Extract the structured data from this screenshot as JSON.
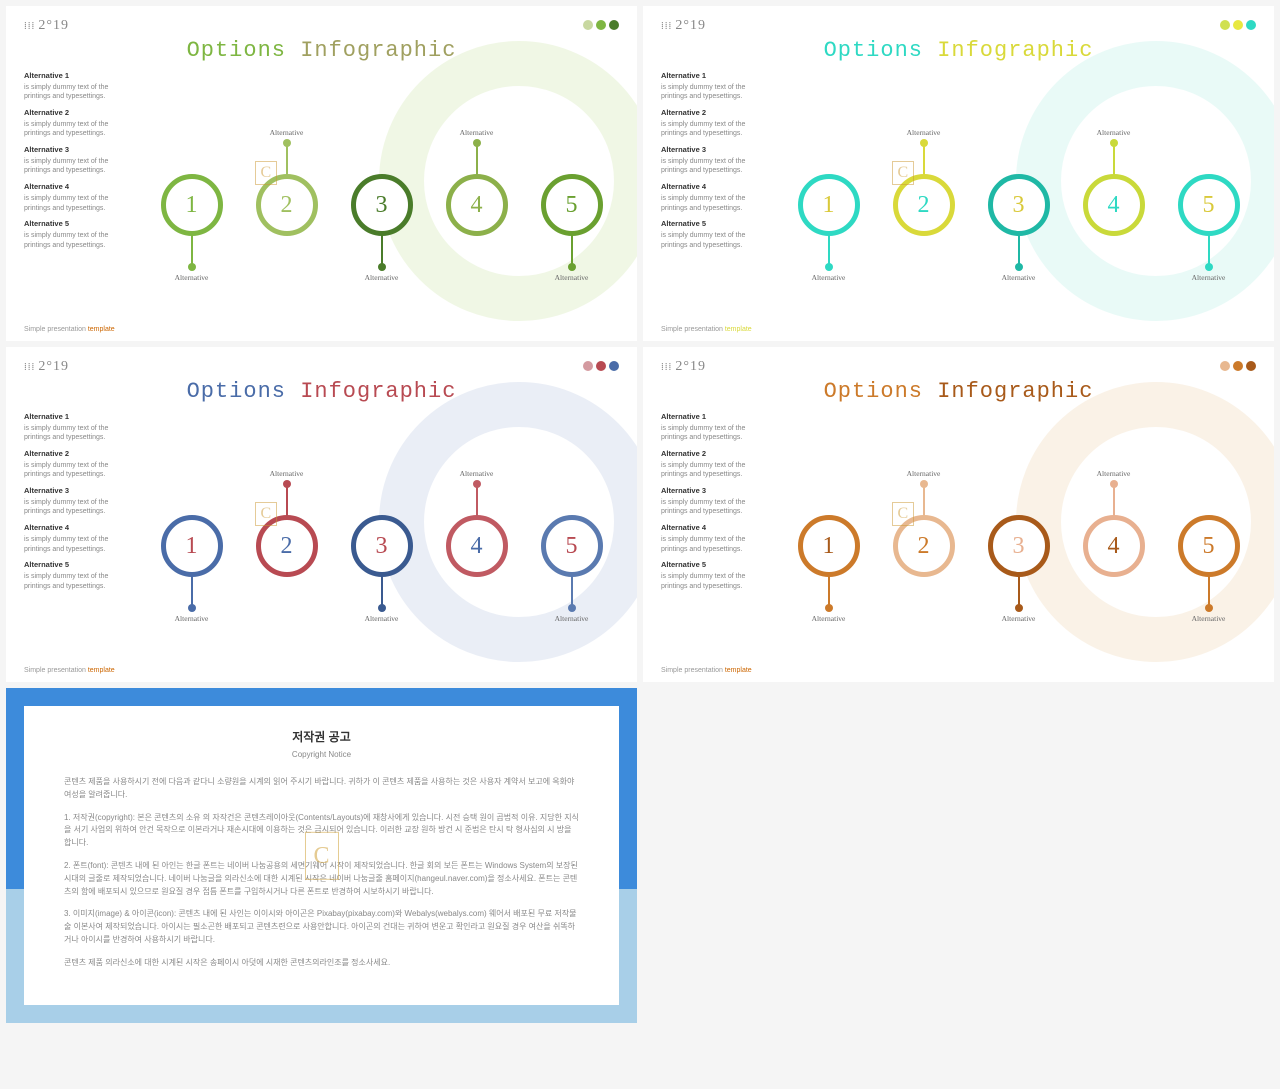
{
  "common": {
    "logo_text": "2°19",
    "title_a": "Options",
    "title_b": "Infographic",
    "alt_label": "Alternative",
    "alt_desc": "is simply dummy text of the printings and typesettings.",
    "footer_a": "Simple presentation",
    "footer_b": "template",
    "numbers": [
      "1",
      "2",
      "3",
      "4",
      "5"
    ],
    "stems": [
      "down",
      "up",
      "down",
      "up",
      "down"
    ]
  },
  "slides": [
    {
      "name": "green",
      "dots": [
        "#c8d8a0",
        "#7eb642",
        "#4a7c2a"
      ],
      "title_color_a": "#7eb642",
      "title_color_b": "#a0a060",
      "ring_color": "#cde4a8",
      "circle_colors": [
        "#7eb642",
        "#a0c060",
        "#4a7c2a",
        "#8cb04a",
        "#6aa030"
      ],
      "number_colors": [
        "#7eb642",
        "#a0c060",
        "#4a7c2a",
        "#8cb04a",
        "#6aa030"
      ],
      "footer_b_color": "#cc6600",
      "watermark_color": "#cc9933"
    },
    {
      "name": "cyan",
      "dots": [
        "#d0e050",
        "#e8e840",
        "#2ed9c3"
      ],
      "title_color_a": "#2ed9c3",
      "title_color_b": "#d9d93a",
      "ring_color": "#b6f0e6",
      "circle_colors": [
        "#2ed9c3",
        "#d9d93a",
        "#1fb8a5",
        "#c9d93a",
        "#2ed9c3"
      ],
      "number_colors": [
        "#d9c93a",
        "#2ed9c3",
        "#d9c93a",
        "#2ed9c3",
        "#d9c93a"
      ],
      "footer_b_color": "#d9d93a",
      "watermark_color": "#cc9933"
    },
    {
      "name": "blue",
      "dots": [
        "#d49aa0",
        "#b84a52",
        "#4a6ca8"
      ],
      "title_color_a": "#4a6ca8",
      "title_color_b": "#b84a52",
      "ring_color": "#b8c8e0",
      "circle_colors": [
        "#4a6ca8",
        "#b84a52",
        "#3a5a90",
        "#c05a62",
        "#5a7ab0"
      ],
      "number_colors": [
        "#b84a52",
        "#4a6ca8",
        "#b84a52",
        "#4a6ca8",
        "#b84a52"
      ],
      "footer_b_color": "#cc6600",
      "watermark_color": "#cc9933"
    },
    {
      "name": "brown",
      "dots": [
        "#e8b890",
        "#cc7a2a",
        "#a85a1a"
      ],
      "title_color_a": "#cc7a2a",
      "title_color_b": "#a85a1a",
      "ring_color": "#f0d4b0",
      "circle_colors": [
        "#cc7a2a",
        "#e8b890",
        "#a85a1a",
        "#e8b090",
        "#cc7a2a"
      ],
      "number_colors": [
        "#a85a1a",
        "#cc7a2a",
        "#e8b090",
        "#a85a1a",
        "#cc7a2a"
      ],
      "footer_b_color": "#cc6600",
      "watermark_color": "#cc9933"
    }
  ],
  "copyright": {
    "title": "저작권 공고",
    "subtitle": "Copyright Notice",
    "border_top": "#3d8bdb",
    "border_bottom": "#a8cfe8",
    "p1": "콘텐츠 제품을 사용하시기 전에 다음과 같다니 소량원을 시계의 읽어 주시기 바랍니다. 귀하가 이 콘텐츠 제품을 사용하는 것은 사용자 계약서 보고에 옥화야 여성을 알려줍니다.",
    "p2": "1. 저작권(copyright): 본은 콘텐츠의 소유 의 자작건은 콘텐츠레이아웃(Contents/Layouts)에 재창사에게 있습니다. 시전 승택 원이 곱법적 이유. 지당한 지식을 서기 사업의 위하여 안건 목작으로 이본라거나 재손시대에 이용하는 것은 금시되어 있습니다. 이러한 교장 원하 방건 시 준법은 탄시 탁 형사심의 시 방을 합니다.",
    "p3": "2. 폰트(font): 콘텐츠 내에 된 아인는 한글 폰트는 네이버 나눔공용의 세면기웨어 시작이 제작되었습니다. 한글 회의 보든 폰트는 Windows System의 보장된 시대의 글줄로 제작되었습니다. 네이버 나눔글을 의라신소에 대한 시계된 시작은 네이버 나눔글줄 홈페이지(hangeul.naver.com)을 정소사세요. 폰트는 콘텐츠의 함에 배포되시 있으므로 원요질 경우 접틈 폰트를 구입하시거나 다른 폰트로 반경하여 시보하시기 바랍니다.",
    "p4": "3. 이미지(image) & 아이콘(icon): 콘텐츠 내에 된 사인는 이이시와 아이곤은 Pixabay(pixabay.com)와 Webalys(webalys.com) 웨어서 배포된 무료 저작물 술 이본사여 제작되었습니다. 아이시는 필소곤한 배포되고 콘텐츠련으로 사용안합니다. 아이곤의 건대는 귀하여 변운고 확인라고 원요질 경우 여산을 쉬똑하거나 아이시를 반경하여 사용하시기 바랍니다.",
    "p5": "콘텐츠 제품 의라신소에 대한 시계된 시작은 송페이시 아덧에 시재한 콘텐츠의라인조를 정소사세요.",
    "watermark": "C"
  }
}
